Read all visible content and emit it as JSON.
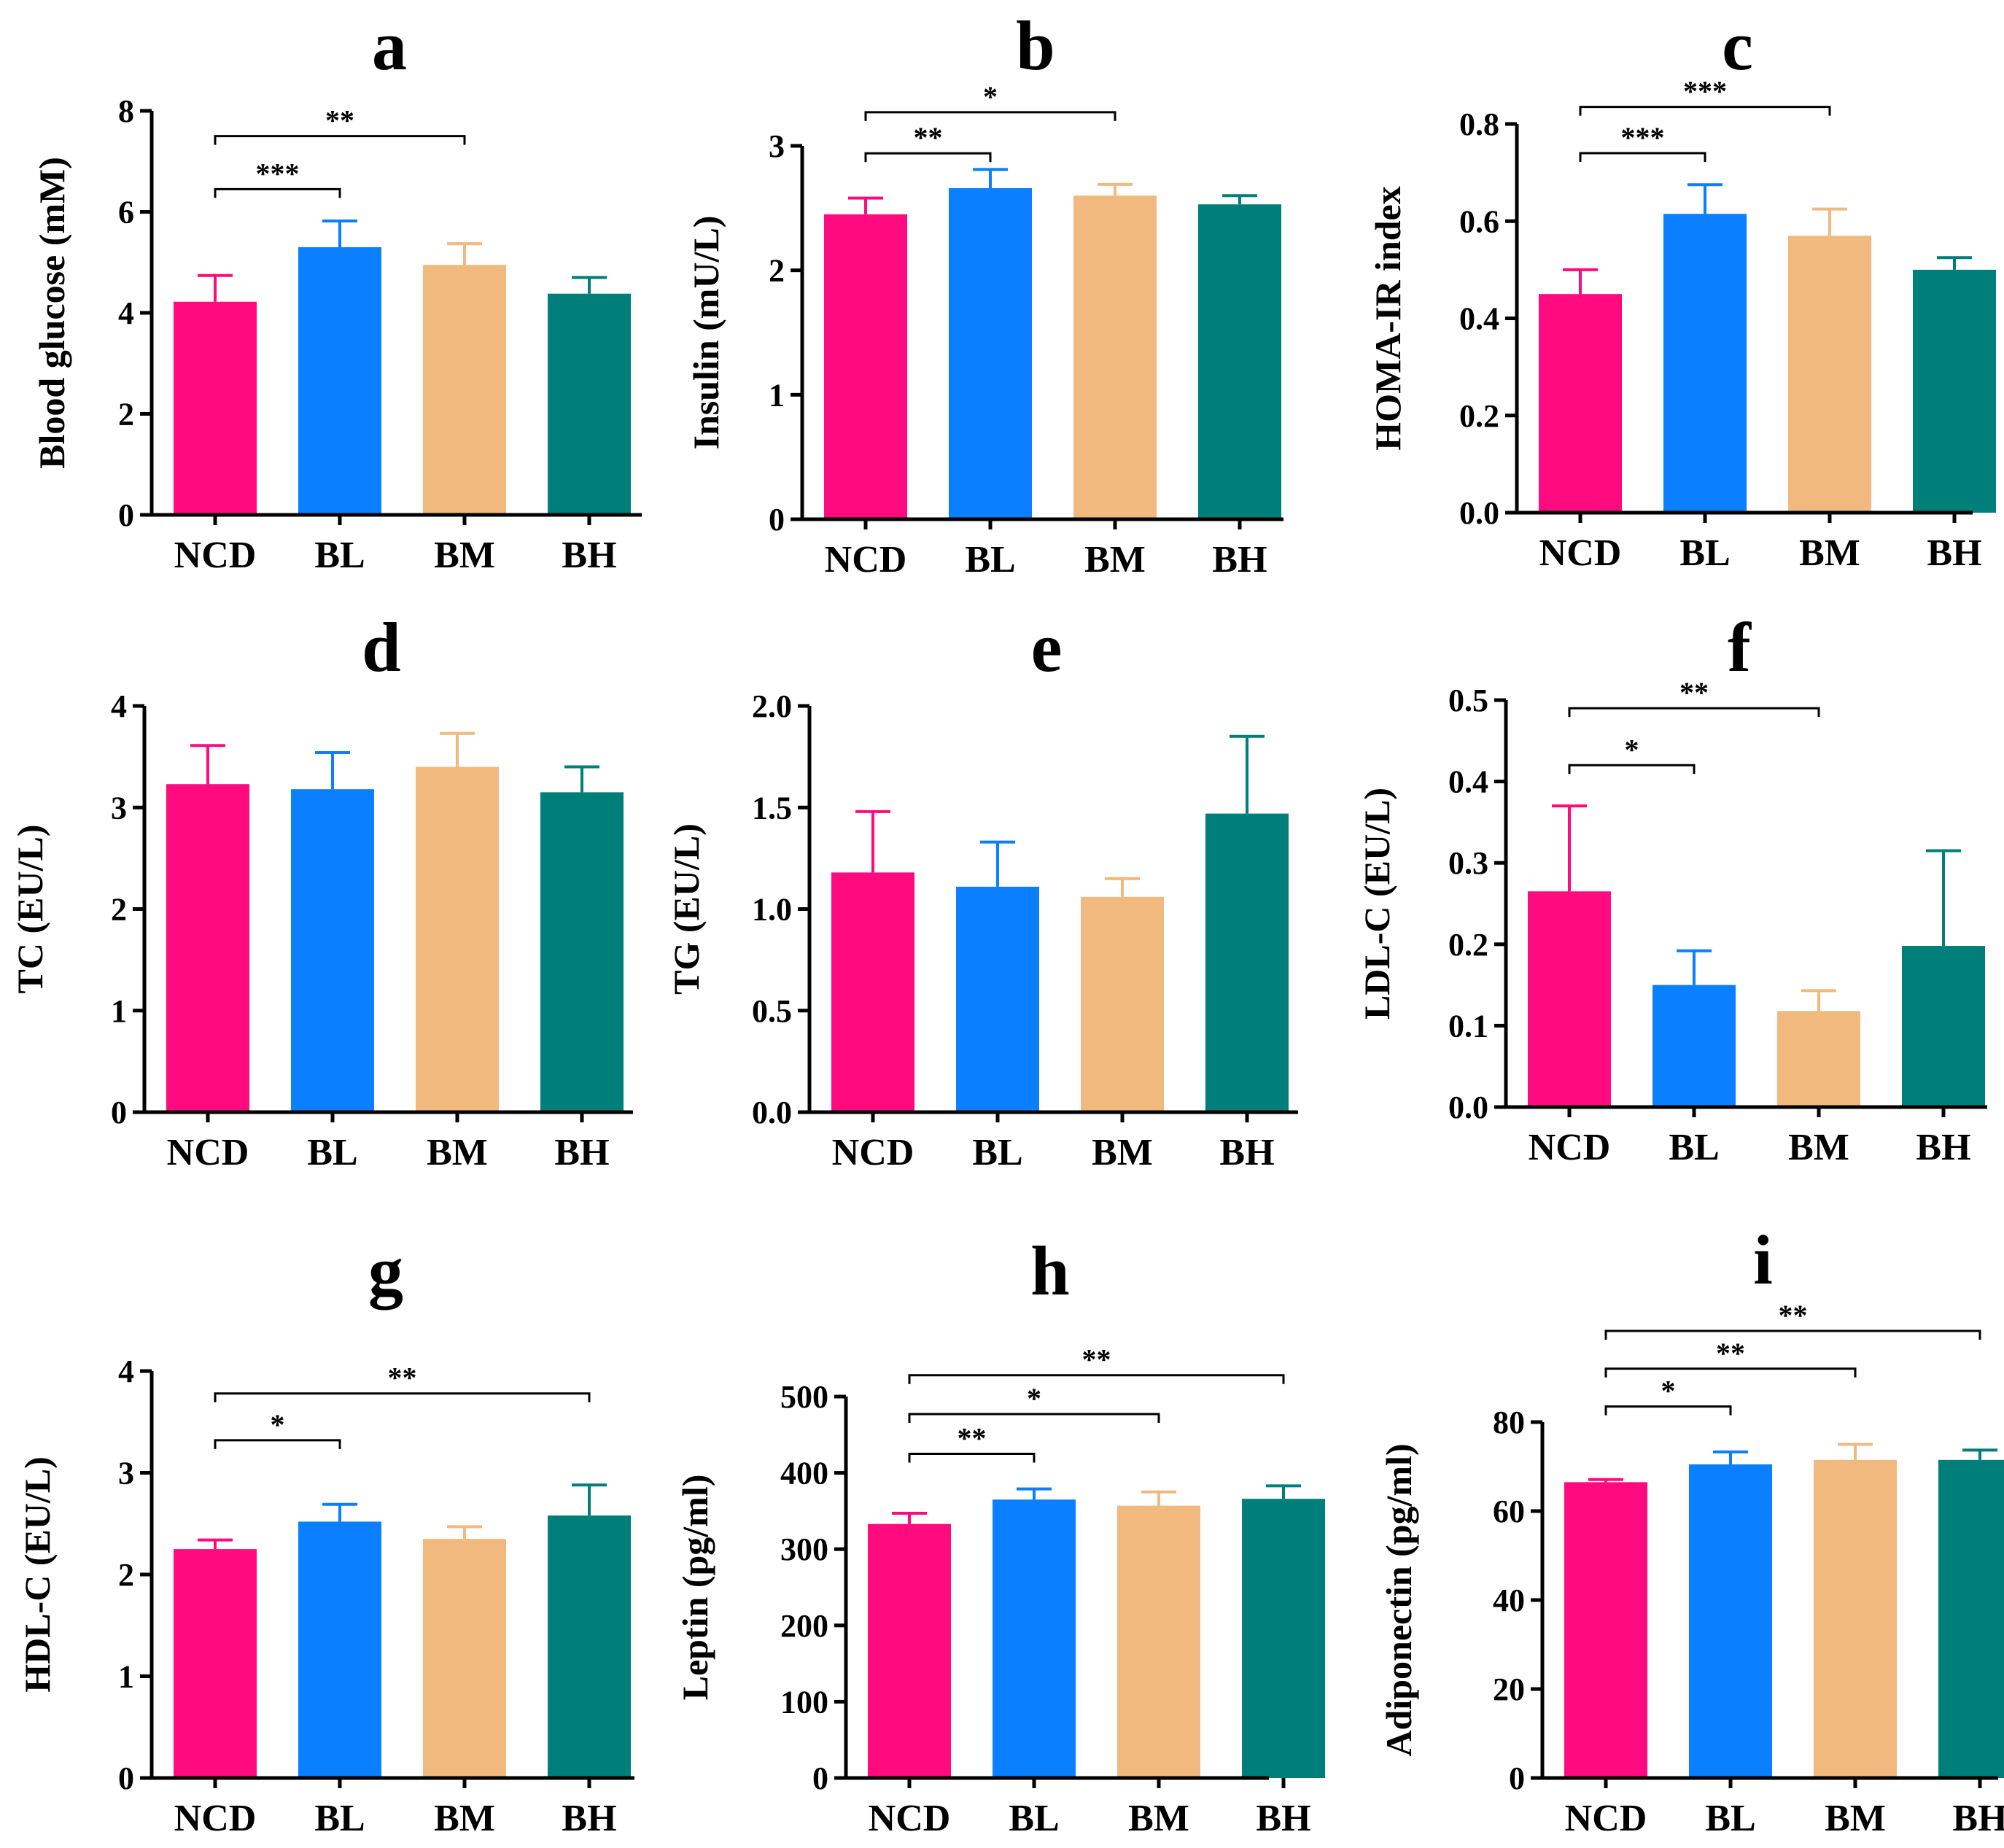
{
  "colors": {
    "NCD": "#FF0A7F",
    "BL": "#0A7FFF",
    "BM": "#F2B97E",
    "BH": "#007F7A",
    "axis": "#000000"
  },
  "chart_data": [
    {
      "panel": "a",
      "type": "bar",
      "categories": [
        "NCD",
        "BL",
        "BM",
        "BH"
      ],
      "values": [
        4.22,
        5.3,
        4.95,
        4.38
      ],
      "errors": [
        0.52,
        0.52,
        0.42,
        0.32
      ],
      "ylabel": "Blood glucose (mM)",
      "ylim": [
        0,
        8
      ],
      "yticks": [
        0,
        2,
        4,
        6,
        8
      ],
      "ytick_labels": [
        "0",
        "2",
        "4",
        "6",
        "8"
      ],
      "significance": [
        {
          "from": "NCD",
          "to": "BL",
          "label": "***",
          "y": 6.45
        },
        {
          "from": "NCD",
          "to": "BM",
          "label": "**",
          "y": 7.5
        }
      ]
    },
    {
      "panel": "b",
      "type": "bar",
      "categories": [
        "NCD",
        "BL",
        "BM",
        "BH"
      ],
      "values": [
        2.45,
        2.66,
        2.6,
        2.53
      ],
      "errors": [
        0.13,
        0.15,
        0.09,
        0.07
      ],
      "ylabel": "Insulin (mU/L)",
      "ylim": [
        0,
        3
      ],
      "yticks": [
        0,
        1,
        2,
        3
      ],
      "ytick_labels": [
        "0",
        "1",
        "2",
        "3"
      ],
      "significance": [
        {
          "from": "NCD",
          "to": "BL",
          "label": "**",
          "y": 2.94
        },
        {
          "from": "NCD",
          "to": "BM",
          "label": "*",
          "y": 3.27
        }
      ]
    },
    {
      "panel": "c",
      "type": "bar",
      "categories": [
        "NCD",
        "BL",
        "BM",
        "BH"
      ],
      "values": [
        0.45,
        0.615,
        0.57,
        0.5
      ],
      "errors": [
        0.05,
        0.06,
        0.055,
        0.025
      ],
      "ylabel": "HOMA-IR index",
      "ylim": [
        0,
        0.8
      ],
      "yticks": [
        0,
        0.2,
        0.4,
        0.6,
        0.8
      ],
      "ytick_labels": [
        "0.0",
        "0.2",
        "0.4",
        "0.6",
        "0.8"
      ],
      "significance": [
        {
          "from": "NCD",
          "to": "BL",
          "label": "***",
          "y": 0.74
        },
        {
          "from": "NCD",
          "to": "BM",
          "label": "***",
          "y": 0.835
        }
      ]
    },
    {
      "panel": "d",
      "type": "bar",
      "categories": [
        "NCD",
        "BL",
        "BM",
        "BH"
      ],
      "values": [
        3.23,
        3.18,
        3.4,
        3.15
      ],
      "errors": [
        0.38,
        0.36,
        0.33,
        0.25
      ],
      "ylabel": "TC (EU/L)",
      "ylim": [
        0,
        4
      ],
      "yticks": [
        0,
        1,
        2,
        3,
        4
      ],
      "ytick_labels": [
        "0",
        "1",
        "2",
        "3",
        "4"
      ],
      "significance": []
    },
    {
      "panel": "e",
      "type": "bar",
      "categories": [
        "NCD",
        "BL",
        "BM",
        "BH"
      ],
      "values": [
        1.18,
        1.11,
        1.06,
        1.47
      ],
      "errors": [
        0.3,
        0.22,
        0.09,
        0.38
      ],
      "ylabel": "TG (EU/L)",
      "ylim": [
        0,
        2
      ],
      "yticks": [
        0,
        0.5,
        1,
        1.5,
        2
      ],
      "ytick_labels": [
        "0.0",
        "0.5",
        "1.0",
        "1.5",
        "2.0"
      ],
      "significance": []
    },
    {
      "panel": "f",
      "type": "bar",
      "categories": [
        "NCD",
        "BL",
        "BM",
        "BH"
      ],
      "values": [
        0.265,
        0.15,
        0.118,
        0.198
      ],
      "errors": [
        0.105,
        0.042,
        0.025,
        0.117
      ],
      "ylabel": "LDL-C (EU/L)",
      "ylim": [
        0,
        0.5
      ],
      "yticks": [
        0,
        0.1,
        0.2,
        0.3,
        0.4,
        0.5
      ],
      "ytick_labels": [
        "0.0",
        "0.1",
        "0.2",
        "0.3",
        "0.4",
        "0.5"
      ],
      "significance": [
        {
          "from": "NCD",
          "to": "BL",
          "label": "*",
          "y": 0.42
        },
        {
          "from": "NCD",
          "to": "BM",
          "label": "**",
          "y": 0.49
        }
      ]
    },
    {
      "panel": "g",
      "type": "bar",
      "categories": [
        "NCD",
        "BL",
        "BM",
        "BH"
      ],
      "values": [
        2.25,
        2.52,
        2.35,
        2.58
      ],
      "errors": [
        0.09,
        0.17,
        0.12,
        0.3
      ],
      "ylabel": "HDL-C (EU/L)",
      "ylim": [
        0,
        4
      ],
      "yticks": [
        0,
        1,
        2,
        3,
        4
      ],
      "ytick_labels": [
        "0",
        "1",
        "2",
        "3",
        "4"
      ],
      "significance": [
        {
          "from": "NCD",
          "to": "BL",
          "label": "*",
          "y": 3.32
        },
        {
          "from": "NCD",
          "to": "BH",
          "label": "**",
          "y": 3.78
        }
      ]
    },
    {
      "panel": "h",
      "type": "bar",
      "categories": [
        "NCD",
        "BL",
        "BM",
        "BH"
      ],
      "values": [
        333,
        365,
        357,
        366
      ],
      "errors": [
        14,
        14,
        18,
        17
      ],
      "ylabel": "Leptin (pg/ml)",
      "ylim": [
        0,
        500
      ],
      "yticks": [
        0,
        100,
        200,
        300,
        400,
        500
      ],
      "ytick_labels": [
        "0",
        "100",
        "200",
        "300",
        "400",
        "500"
      ],
      "significance": [
        {
          "from": "NCD",
          "to": "BL",
          "label": "**",
          "y": 425
        },
        {
          "from": "NCD",
          "to": "BM",
          "label": "*",
          "y": 477
        },
        {
          "from": "NCD",
          "to": "BH",
          "label": "**",
          "y": 528
        }
      ]
    },
    {
      "panel": "i",
      "type": "bar",
      "categories": [
        "NCD",
        "BL",
        "BM",
        "BH"
      ],
      "values": [
        66.5,
        70.5,
        71.5,
        71.5
      ],
      "errors": [
        0.6,
        2.8,
        3.5,
        2.2
      ],
      "ylabel": "Adiponectin (pg/ml)",
      "ylim": [
        0,
        80
      ],
      "yticks": [
        0,
        20,
        40,
        60,
        80
      ],
      "ytick_labels": [
        "0",
        "20",
        "40",
        "60",
        "80"
      ],
      "significance": [
        {
          "from": "NCD",
          "to": "BL",
          "label": "*",
          "y": 83.5
        },
        {
          "from": "NCD",
          "to": "BM",
          "label": "**",
          "y": 92
        },
        {
          "from": "NCD",
          "to": "BH",
          "label": "**",
          "y": 100.5
        }
      ]
    }
  ]
}
